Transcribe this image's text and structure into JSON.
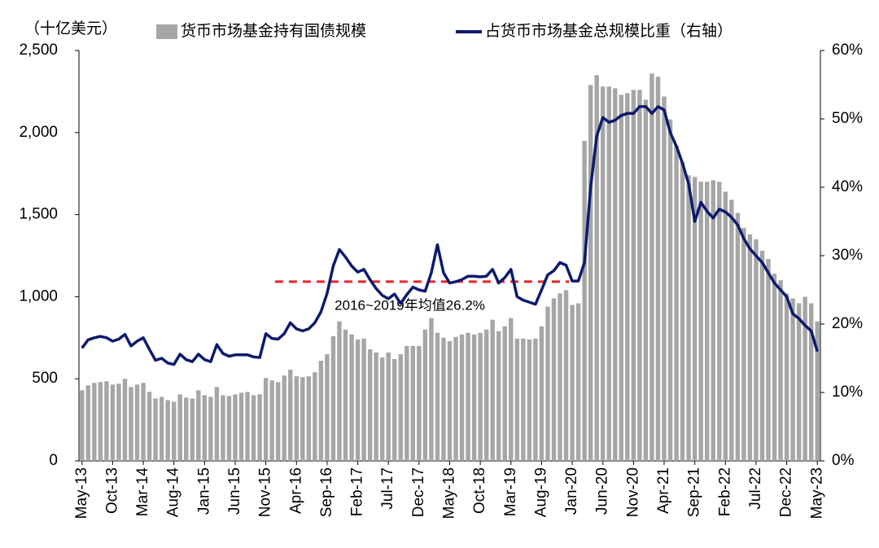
{
  "chart_data": {
    "type": "bar_line",
    "y_unit_label": "（十亿美元）",
    "categories": [
      "May-13",
      null,
      null,
      null,
      null,
      "Oct-13",
      null,
      null,
      null,
      null,
      "Mar-14",
      null,
      null,
      null,
      null,
      "Aug-14",
      null,
      null,
      null,
      null,
      "Jan-15",
      null,
      null,
      null,
      null,
      "Jun-15",
      null,
      null,
      null,
      null,
      "Nov-15",
      null,
      null,
      null,
      null,
      "Apr-16",
      null,
      null,
      null,
      null,
      "Sep-16",
      null,
      null,
      null,
      null,
      "Feb-17",
      null,
      null,
      null,
      null,
      "Jul-17",
      null,
      null,
      null,
      null,
      "Dec-17",
      null,
      null,
      null,
      null,
      "May-18",
      null,
      null,
      null,
      null,
      "Oct-18",
      null,
      null,
      null,
      null,
      "Mar-19",
      null,
      null,
      null,
      null,
      "Aug-19",
      null,
      null,
      null,
      null,
      "Jan-20",
      null,
      null,
      null,
      null,
      "Jun-20",
      null,
      null,
      null,
      null,
      "Nov-20",
      null,
      null,
      null,
      null,
      "Apr-21",
      null,
      null,
      null,
      null,
      "Sep-21",
      null,
      null,
      null,
      null,
      "Feb-22",
      null,
      null,
      null,
      null,
      "Jul-22",
      null,
      null,
      null,
      null,
      "Dec-22",
      null,
      null,
      null,
      null,
      "May-23"
    ],
    "series": [
      {
        "name": "货币市场基金持有国债规模",
        "color": "#a6a6a6",
        "axis": "y",
        "values": [
          430,
          460,
          475,
          480,
          485,
          465,
          470,
          500,
          450,
          465,
          475,
          420,
          380,
          390,
          370,
          360,
          405,
          385,
          380,
          430,
          400,
          390,
          450,
          400,
          395,
          405,
          415,
          420,
          400,
          405,
          505,
          490,
          480,
          520,
          555,
          515,
          510,
          515,
          540,
          610,
          650,
          760,
          850,
          800,
          770,
          740,
          745,
          680,
          660,
          630,
          660,
          620,
          650,
          700,
          700,
          700,
          800,
          870,
          780,
          750,
          730,
          755,
          770,
          780,
          770,
          780,
          800,
          860,
          790,
          820,
          870,
          745,
          745,
          740,
          745,
          820,
          940,
          990,
          1020,
          1040,
          950,
          960,
          1950,
          2290,
          2350,
          2280,
          2280,
          2270,
          2230,
          2240,
          2260,
          2260,
          2200,
          2360,
          2340,
          2220,
          2080,
          1920,
          1820,
          1740,
          1730,
          1700,
          1700,
          1710,
          1700,
          1640,
          1590,
          1510,
          1420,
          1380,
          1350,
          1280,
          1230,
          1140,
          1100,
          1020,
          990,
          960,
          1000,
          960,
          850
        ]
      },
      {
        "name": "占货币市场基金总规模比重（右轴）",
        "color": "#0d1a6e",
        "axis": "y2",
        "values": [
          16.5,
          17.7,
          18.0,
          18.2,
          18.0,
          17.5,
          17.8,
          18.5,
          16.8,
          17.5,
          18.0,
          16.3,
          14.7,
          15.0,
          14.3,
          14.1,
          15.6,
          14.8,
          14.5,
          15.6,
          14.8,
          14.5,
          17.0,
          15.7,
          15.3,
          15.5,
          15.5,
          15.5,
          15.2,
          15.1,
          18.6,
          17.9,
          17.8,
          18.6,
          20.2,
          19.3,
          19.0,
          19.3,
          20.2,
          21.8,
          24.5,
          28.5,
          30.9,
          29.8,
          28.5,
          27.6,
          28.0,
          26.5,
          25.2,
          24.2,
          23.7,
          24.4,
          23.0,
          24.3,
          25.4,
          25.0,
          24.8,
          27.5,
          31.6,
          27.5,
          26.0,
          26.2,
          26.5,
          27.0,
          27.0,
          26.9,
          27.0,
          28.0,
          26.0,
          26.8,
          28.0,
          24.0,
          23.5,
          23.2,
          22.9,
          25.0,
          27.2,
          27.8,
          29.0,
          28.6,
          26.3,
          26.3,
          29.0,
          40.0,
          47.5,
          50.2,
          49.5,
          49.8,
          50.5,
          50.8,
          50.8,
          51.8,
          51.8,
          50.8,
          51.8,
          51.3,
          48.0,
          46.0,
          43.5,
          40.5,
          35.0,
          37.8,
          36.5,
          35.5,
          36.8,
          36.4,
          35.6,
          34.5,
          32.5,
          31.0,
          30.0,
          29.0,
          27.5,
          26.0,
          25.0,
          24.0,
          21.5,
          20.8,
          19.8,
          19.0,
          16.0
        ]
      }
    ],
    "ylim": [
      0,
      2500
    ],
    "yticks": [
      0,
      500,
      {
        "value": 1000,
        "label": "1,000"
      },
      {
        "value": 1500,
        "label": "1,500"
      },
      {
        "value": 2000,
        "label": "2,000"
      },
      {
        "value": 2500,
        "label": "2,500"
      }
    ],
    "y2lim": [
      0,
      60
    ],
    "y2ticks": [
      {
        "value": 0,
        "label": "0%"
      },
      {
        "value": 10,
        "label": "10%"
      },
      {
        "value": 20,
        "label": "20%"
      },
      {
        "value": 30,
        "label": "30%"
      },
      {
        "value": 40,
        "label": "40%"
      },
      {
        "value": 50,
        "label": "50%"
      },
      {
        "value": 60,
        "label": "60%"
      }
    ],
    "reference_line": {
      "value": 26.2,
      "axis": "y2",
      "color": "#e8262a",
      "label": "2016~2019年均值26.2%"
    },
    "grid": false
  }
}
